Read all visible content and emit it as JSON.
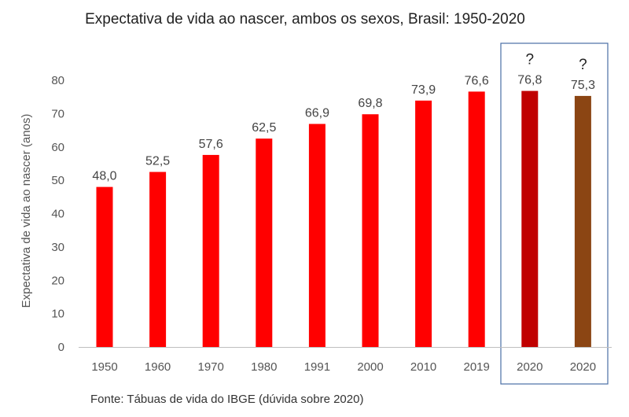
{
  "chart_data": {
    "type": "bar",
    "title": "Expectativa de vida ao nascer, ambos os sexos, Brasil: 1950-2020",
    "ylabel": "Expectativa de vida ao nascer (anos)",
    "xlabel": "",
    "ylim": [
      0,
      80
    ],
    "yticks": [
      0,
      10,
      20,
      30,
      40,
      50,
      60,
      70,
      80
    ],
    "grid": false,
    "categories": [
      "1950",
      "1960",
      "1970",
      "1980",
      "1991",
      "2000",
      "2010",
      "2019",
      "2020",
      "2020"
    ],
    "values": [
      48.0,
      52.5,
      57.6,
      62.5,
      66.9,
      69.8,
      73.9,
      76.6,
      76.8,
      75.3
    ],
    "data_labels": [
      "48,0",
      "52,5",
      "57,6",
      "62,5",
      "66,9",
      "69,8",
      "73,9",
      "76,6",
      "76,8",
      "75,3"
    ],
    "bar_colors": [
      "#ff0000",
      "#ff0000",
      "#ff0000",
      "#ff0000",
      "#ff0000",
      "#ff0000",
      "#ff0000",
      "#ff0000",
      "#c00000",
      "#8b4513"
    ],
    "annotations": [
      {
        "category_index": 8,
        "text": "?"
      },
      {
        "category_index": 9,
        "text": "?"
      }
    ],
    "highlight_box_categories": [
      8,
      9
    ],
    "highlight_box_color": "#4a6fa5",
    "axis_color": "#bfbfbf"
  },
  "source": "Fonte: Tábuas de vida do IBGE (dúvida sobre 2020)"
}
